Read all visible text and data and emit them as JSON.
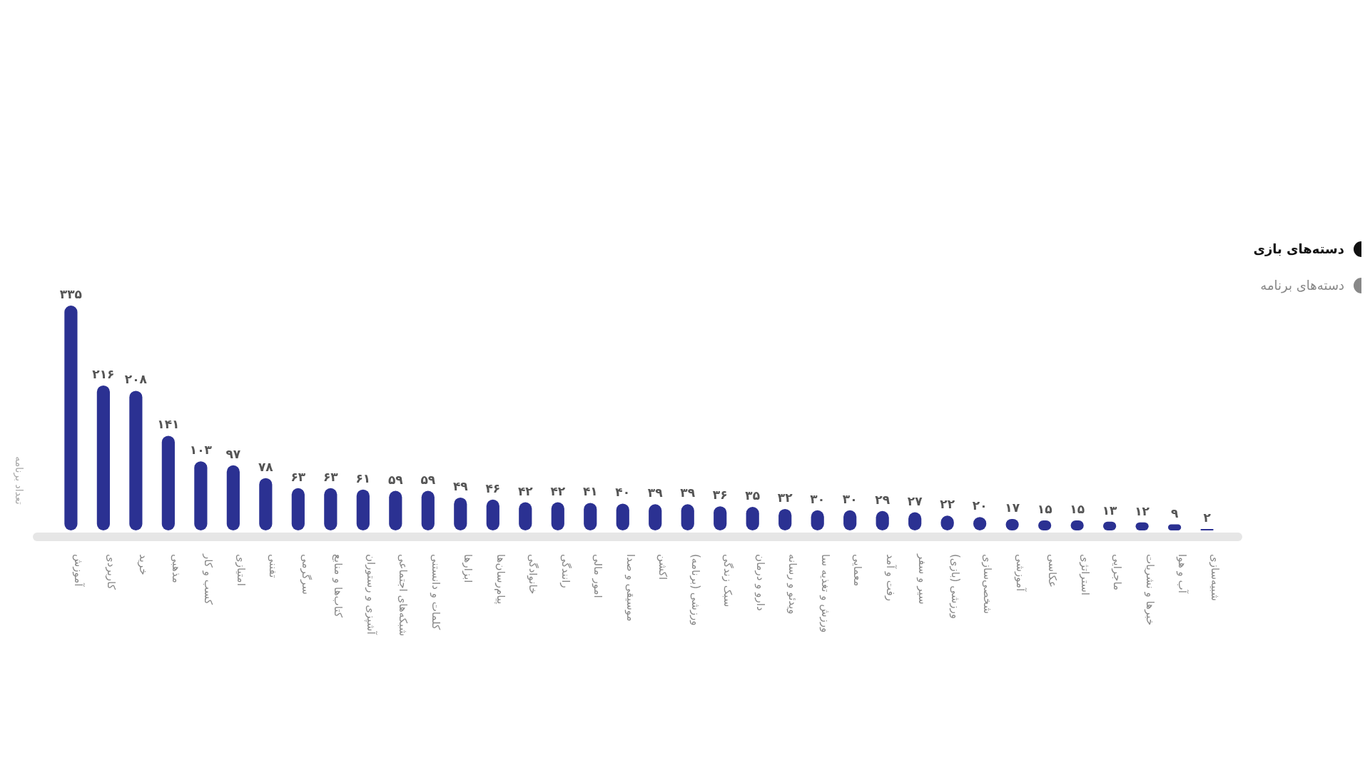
{
  "chart_data": {
    "type": "bar",
    "ylabel": "تعداد برنامه",
    "categories": [
      "آموزش",
      "کاربردی",
      "خرید",
      "مذهبی",
      "کسب و کار",
      "امتیازی",
      "تفننی",
      "سرگرمی",
      "کتاب‌ها و منابع",
      "آشپزی و رستوران",
      "شبکه‌های اجتماعی",
      "کلمات و دانستنی",
      "ابزارها",
      "پیام‌رسان‌ها",
      "خانوادگی",
      "رانندگی",
      "امور مالی",
      "موسیقی و صدا",
      "اکشن",
      "ورزشی (برنامه)",
      "سبک زندگی",
      "دارو و درمان",
      "ویدئو و رسانه",
      "ورزش و تغذیه سا",
      "معمایی",
      "رفت و آمد",
      "سیر و سفر",
      "ورزشی (بازی)",
      "شخصی‌سازی",
      "آموزشی",
      "عکاسی",
      "استراتژی",
      "ماجرایی",
      "خبرها و نشریات",
      "آب و هوا",
      "شبیه‌سازی"
    ],
    "values": [
      335,
      216,
      208,
      141,
      103,
      97,
      78,
      63,
      63,
      61,
      59,
      59,
      49,
      46,
      42,
      42,
      41,
      40,
      39,
      39,
      36,
      35,
      32,
      30,
      30,
      29,
      27,
      22,
      20,
      17,
      15,
      15,
      13,
      12,
      9,
      2
    ],
    "value_labels": [
      "۳۳۵",
      "۲۱۶",
      "۲۰۸",
      "۱۴۱",
      "۱۰۳",
      "۹۷",
      "۷۸",
      "۶۳",
      "۶۳",
      "۶۱",
      "۵۹",
      "۵۹",
      "۴۹",
      "۴۶",
      "۴۲",
      "۴۲",
      "۴۱",
      "۴۰",
      "۳۹",
      "۳۹",
      "۳۶",
      "۳۵",
      "۳۲",
      "۳۰",
      "۳۰",
      "۲۹",
      "۲۷",
      "۲۲",
      "۲۰",
      "۱۷",
      "۱۵",
      "۱۵",
      "۱۳",
      "۱۲",
      "۹",
      "۲"
    ],
    "color": "#2b3192",
    "annotations": [
      "دسته‌های بازی",
      "دسته‌های برنامه"
    ]
  }
}
